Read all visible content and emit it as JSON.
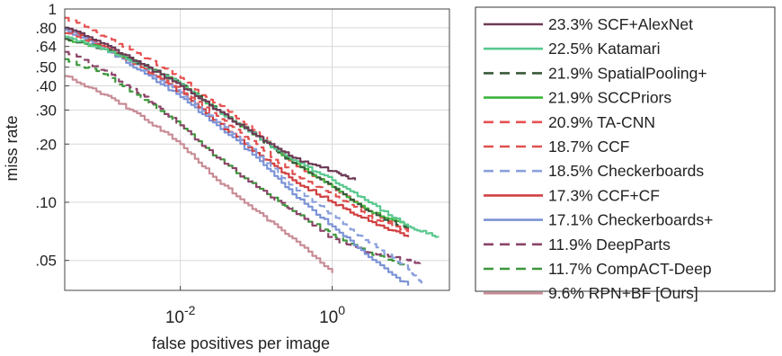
{
  "chart_data": {
    "type": "line",
    "xlabel": "false positives per image",
    "ylabel": "miss rate",
    "xscale": "log",
    "yscale": "log",
    "xlim": [
      0.0003,
      35
    ],
    "ylim": [
      0.035,
      1
    ],
    "grid": true,
    "legend_position": "right",
    "xticks": [
      {
        "value": 0.01,
        "base": "10",
        "exp": "-2"
      },
      {
        "value": 1,
        "base": "10",
        "exp": "0"
      }
    ],
    "yticks": [
      {
        "value": 1,
        "label": "1"
      },
      {
        "value": 0.8,
        "label": ".80"
      },
      {
        "value": 0.64,
        "label": ".64"
      },
      {
        "value": 0.5,
        "label": ".50"
      },
      {
        "value": 0.4,
        "label": ".40"
      },
      {
        "value": 0.3,
        "label": ".30"
      },
      {
        "value": 0.2,
        "label": ".20"
      },
      {
        "value": 0.1,
        "label": ".10"
      },
      {
        "value": 0.05,
        "label": ".05"
      }
    ],
    "series": [
      {
        "name": "23.3% SCF+AlexNet",
        "color": "#6e3a56",
        "dash": "solid",
        "x": [
          0.0003,
          0.001,
          0.003,
          0.01,
          0.03,
          0.1,
          0.3,
          1,
          2
        ],
        "y": [
          0.8,
          0.66,
          0.52,
          0.4,
          0.3,
          0.22,
          0.17,
          0.145,
          0.13
        ]
      },
      {
        "name": "22.5% Katamari",
        "color": "#5ac88f",
        "dash": "solid",
        "x": [
          0.0003,
          0.001,
          0.003,
          0.01,
          0.03,
          0.1,
          0.3,
          1,
          3,
          10,
          25
        ],
        "y": [
          0.72,
          0.62,
          0.52,
          0.41,
          0.3,
          0.22,
          0.165,
          0.13,
          0.1,
          0.075,
          0.066
        ]
      },
      {
        "name": "21.9% SpatialPooling+",
        "color": "#3a5a3a",
        "dash": "dash",
        "x": [
          0.0003,
          0.001,
          0.003,
          0.01,
          0.03,
          0.1,
          0.3,
          1,
          3,
          10
        ],
        "y": [
          0.7,
          0.62,
          0.52,
          0.41,
          0.3,
          0.22,
          0.16,
          0.12,
          0.09,
          0.072
        ]
      },
      {
        "name": "21.9% SCCPriors",
        "color": "#3cb43c",
        "dash": "solid",
        "x": [
          0.0003,
          0.001,
          0.003,
          0.01,
          0.03,
          0.1,
          0.3,
          1,
          3,
          10
        ],
        "y": [
          0.7,
          0.62,
          0.52,
          0.41,
          0.3,
          0.22,
          0.16,
          0.12,
          0.09,
          0.075
        ]
      },
      {
        "name": "20.9% TA-CNN",
        "color": "#e85050",
        "dash": "dash",
        "x": [
          0.0003,
          0.001,
          0.003,
          0.01,
          0.03,
          0.1,
          0.3,
          1,
          3,
          10
        ],
        "y": [
          0.9,
          0.72,
          0.58,
          0.44,
          0.32,
          0.23,
          0.16,
          0.12,
          0.09,
          0.07
        ]
      },
      {
        "name": "18.7% CCF",
        "color": "#e05050",
        "dash": "dash",
        "x": [
          0.0003,
          0.001,
          0.003,
          0.01,
          0.03,
          0.1,
          0.3,
          1,
          3,
          10
        ],
        "y": [
          0.75,
          0.62,
          0.5,
          0.38,
          0.28,
          0.2,
          0.14,
          0.11,
          0.085,
          0.07
        ]
      },
      {
        "name": "18.5% Checkerboards",
        "color": "#8aa0dc",
        "dash": "dash",
        "x": [
          0.0003,
          0.001,
          0.003,
          0.01,
          0.03,
          0.1,
          0.3,
          1,
          3,
          10,
          15
        ],
        "y": [
          0.8,
          0.62,
          0.5,
          0.37,
          0.26,
          0.18,
          0.12,
          0.085,
          0.062,
          0.045,
          0.038
        ]
      },
      {
        "name": "17.3% CCF+CF",
        "color": "#d04040",
        "dash": "solid",
        "x": [
          0.0003,
          0.001,
          0.003,
          0.01,
          0.03,
          0.1,
          0.3,
          1,
          3,
          10
        ],
        "y": [
          0.8,
          0.64,
          0.5,
          0.37,
          0.26,
          0.18,
          0.13,
          0.1,
          0.08,
          0.066
        ]
      },
      {
        "name": "17.1% Checkerboards+",
        "color": "#7b93d6",
        "dash": "solid",
        "x": [
          0.0003,
          0.001,
          0.003,
          0.01,
          0.03,
          0.1,
          0.3,
          1,
          3,
          10
        ],
        "y": [
          0.78,
          0.62,
          0.48,
          0.35,
          0.25,
          0.17,
          0.11,
          0.075,
          0.052,
          0.037
        ]
      },
      {
        "name": "11.9% DeepParts",
        "color": "#8c4468",
        "dash": "dash",
        "x": [
          0.0003,
          0.001,
          0.003,
          0.01,
          0.03,
          0.1,
          0.3,
          1,
          3,
          10,
          15
        ],
        "y": [
          0.6,
          0.48,
          0.36,
          0.25,
          0.17,
          0.12,
          0.09,
          0.065,
          0.055,
          0.05,
          0.048
        ]
      },
      {
        "name": "11.7% CompACT-Deep",
        "color": "#3c963c",
        "dash": "dash",
        "x": [
          0.0003,
          0.001,
          0.003,
          0.01,
          0.03,
          0.1,
          0.3,
          1,
          3,
          10
        ],
        "y": [
          0.55,
          0.46,
          0.35,
          0.25,
          0.17,
          0.12,
          0.09,
          0.068,
          0.055,
          0.046
        ]
      },
      {
        "name": "9.6% RPN+BF [Ours]",
        "color": "#c88c96",
        "dash": "solid",
        "x": [
          0.0003,
          0.001,
          0.003,
          0.01,
          0.03,
          0.1,
          0.3,
          1
        ],
        "y": [
          0.45,
          0.36,
          0.28,
          0.2,
          0.13,
          0.09,
          0.065,
          0.043
        ]
      }
    ]
  }
}
